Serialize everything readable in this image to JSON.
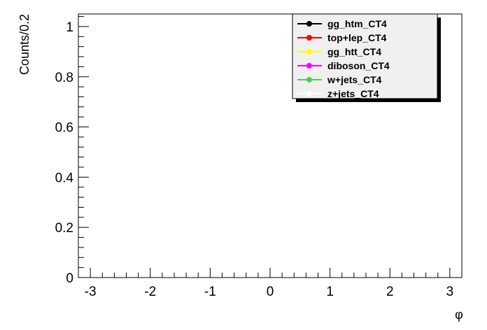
{
  "chart_data": {
    "type": "line",
    "title": "",
    "xlabel": "φ",
    "ylabel": "Counts/0.2",
    "xlim": [
      -3.2,
      3.2
    ],
    "ylim": [
      0,
      1.05
    ],
    "x_ticks": [
      -3,
      -2,
      -1,
      0,
      1,
      2,
      3
    ],
    "x_tick_labels": [
      "-3",
      "-2",
      "-1",
      "0",
      "1",
      "2",
      "3"
    ],
    "y_ticks": [
      0,
      0.2,
      0.4,
      0.6,
      0.8,
      1
    ],
    "y_tick_labels": [
      "0",
      "0.2",
      "0.4",
      "0.6",
      "0.8",
      "1"
    ],
    "grid": false,
    "legend_position": "top-right",
    "series": [
      {
        "name": "gg_htm_CT4",
        "color": "#000000",
        "values": []
      },
      {
        "name": "top+lep_CT4",
        "color": "#ff0000",
        "values": []
      },
      {
        "name": "gg_htt_CT4",
        "color": "#ffff00",
        "values": []
      },
      {
        "name": "diboson_CT4",
        "color": "#ff00ff",
        "values": []
      },
      {
        "name": "w+jets_CT4",
        "color": "#55cc55",
        "values": []
      },
      {
        "name": "z+jets_CT4",
        "color": "#ffffff",
        "values": []
      }
    ]
  }
}
